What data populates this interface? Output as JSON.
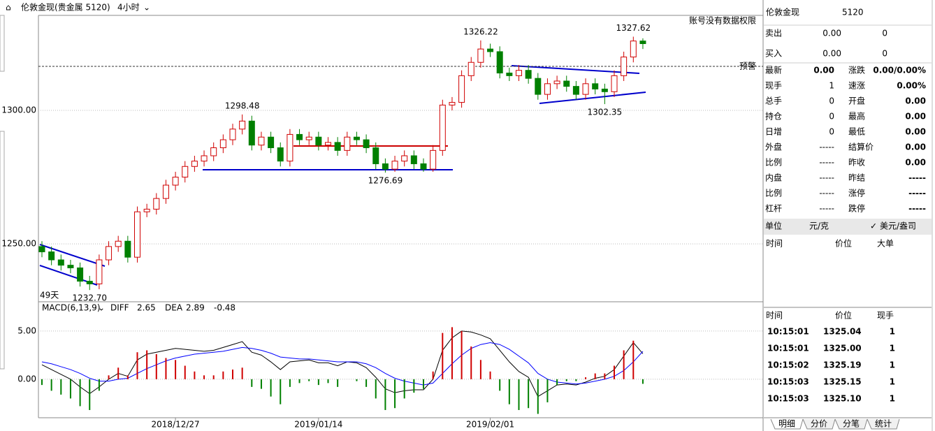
{
  "header": {
    "title": "伦敦金现(贵金属 5120)",
    "period": "4小时",
    "notice": "账号没有数据权限"
  },
  "chart_data": [
    {
      "type": "candlestick",
      "days_label": "49天",
      "up_color": "#d00000",
      "down_color": "#008000",
      "ylim": [
        1228.3,
        1335.6
      ],
      "yticks": [
        {
          "value": 1250,
          "label": "1250.00"
        },
        {
          "value": 1300,
          "label": "1300.00"
        }
      ],
      "grid": true,
      "alert": {
        "label": "预警",
        "value": 1316.5
      },
      "open": [
        1249,
        1247,
        1244,
        1242,
        1241,
        1236,
        1235,
        1244,
        1249,
        1251,
        1245,
        1262,
        1263,
        1267,
        1272,
        1275,
        1279,
        1281,
        1283,
        1286,
        1289,
        1293,
        1296,
        1287,
        1290,
        1286,
        1281,
        1291,
        1289,
        1290,
        1287,
        1288,
        1285,
        1290,
        1289,
        1286,
        1280,
        1278,
        1281,
        1283,
        1280,
        1278,
        1285,
        1302,
        1303,
        1313,
        1318,
        1323,
        1322,
        1314,
        1313,
        1315,
        1312,
        1306,
        1310,
        1311,
        1309,
        1306,
        1310,
        1308,
        1307,
        1313,
        1320,
        1326
      ],
      "high": [
        1251,
        1249,
        1246,
        1244,
        1243,
        1238,
        1246,
        1251,
        1253,
        1253,
        1264,
        1265,
        1269,
        1274,
        1277,
        1281,
        1283,
        1285,
        1288,
        1291,
        1295,
        1298.48,
        1298,
        1292,
        1292,
        1288,
        1293,
        1293,
        1292,
        1292,
        1290,
        1290,
        1292,
        1292,
        1291,
        1288,
        1282,
        1283,
        1285,
        1285,
        1282,
        1287,
        1304,
        1305,
        1315,
        1320,
        1326.22,
        1325,
        1324,
        1316,
        1317,
        1317,
        1314,
        1312,
        1313,
        1313,
        1311,
        1312,
        1312,
        1310,
        1315,
        1322,
        1327.62,
        1327
      ],
      "low": [
        1245,
        1242,
        1240,
        1239,
        1234,
        1232.7,
        1233,
        1242,
        1247,
        1243,
        1243,
        1260,
        1261,
        1265,
        1270,
        1273,
        1277,
        1279,
        1281,
        1284,
        1287,
        1291,
        1285,
        1285,
        1284,
        1279,
        1279,
        1287,
        1287,
        1285,
        1285,
        1283,
        1283,
        1287,
        1284,
        1278,
        1276.69,
        1277,
        1279,
        1278,
        1277,
        1277,
        1283,
        1300,
        1301,
        1311,
        1316,
        1320,
        1312,
        1311,
        1311,
        1310,
        1304,
        1304,
        1308,
        1307,
        1304,
        1304,
        1306,
        1302.35,
        1305,
        1311,
        1318,
        1323
      ],
      "close": [
        1247,
        1244,
        1242,
        1241,
        1236,
        1235,
        1244,
        1249,
        1251,
        1245,
        1262,
        1263,
        1267,
        1272,
        1275,
        1279,
        1281,
        1283,
        1286,
        1289,
        1293,
        1296,
        1287,
        1290,
        1286,
        1281,
        1291,
        1289,
        1290,
        1287,
        1288,
        1285,
        1290,
        1289,
        1286,
        1280,
        1278,
        1281,
        1283,
        1280,
        1278,
        1285,
        1302,
        1303,
        1313,
        1318,
        1323,
        1322,
        1314,
        1313,
        1315,
        1312,
        1306,
        1310,
        1311,
        1309,
        1306,
        1310,
        1308,
        1307,
        1313,
        1320,
        1326,
        1325
      ],
      "high_labels": [
        null,
        null,
        null,
        null,
        null,
        null,
        null,
        null,
        null,
        null,
        null,
        null,
        null,
        null,
        null,
        null,
        null,
        null,
        null,
        null,
        null,
        "1298.48",
        null,
        null,
        null,
        null,
        null,
        null,
        null,
        null,
        null,
        null,
        null,
        null,
        null,
        null,
        null,
        null,
        null,
        null,
        null,
        null,
        null,
        null,
        null,
        null,
        "1326.22",
        null,
        null,
        null,
        null,
        null,
        null,
        null,
        null,
        null,
        null,
        null,
        null,
        null,
        null,
        null,
        "1327.62",
        null
      ],
      "low_labels": [
        null,
        null,
        null,
        null,
        null,
        "1232.70",
        null,
        null,
        null,
        null,
        null,
        null,
        null,
        null,
        null,
        null,
        null,
        null,
        null,
        null,
        null,
        null,
        null,
        null,
        null,
        null,
        null,
        null,
        null,
        null,
        null,
        null,
        null,
        null,
        null,
        null,
        "1276.69",
        null,
        null,
        null,
        null,
        null,
        null,
        null,
        null,
        null,
        null,
        null,
        null,
        null,
        null,
        null,
        null,
        null,
        null,
        null,
        null,
        null,
        null,
        "1302.35",
        null,
        null,
        null,
        null
      ]
    },
    {
      "type": "macd",
      "title": "MACD(6,13,9)",
      "up_color": "#d00000",
      "down_color": "#008000",
      "ylim": [
        -4,
        8.04
      ],
      "yticks": [
        {
          "value": 0,
          "label": "0.00"
        },
        {
          "value": 5,
          "label": "5.00"
        }
      ],
      "categories": [
        null,
        null,
        null,
        null,
        null,
        null,
        null,
        null,
        null,
        null,
        null,
        null,
        null,
        null,
        "2018/12/27",
        null,
        null,
        null,
        null,
        null,
        null,
        null,
        null,
        null,
        null,
        null,
        null,
        null,
        null,
        "2019/01/14",
        null,
        null,
        null,
        null,
        null,
        null,
        null,
        null,
        null,
        null,
        null,
        null,
        null,
        null,
        null,
        null,
        null,
        "2019/02/01",
        null,
        null,
        null,
        null,
        null,
        null,
        null,
        null,
        null,
        null,
        null,
        null,
        null,
        null,
        null,
        null
      ],
      "series": [
        {
          "name": "DIFF",
          "color": "#000000",
          "values": [
            1.5,
            1.0,
            0.5,
            0,
            -0.8,
            -1.5,
            -0.8,
            0,
            0.6,
            0.3,
            2.0,
            2.6,
            2.8,
            3.0,
            3.2,
            3.1,
            3.0,
            2.9,
            3.0,
            3.3,
            3.6,
            3.9,
            2.8,
            2.5,
            1.8,
            1.0,
            1.8,
            1.9,
            2.0,
            1.7,
            1.7,
            1.4,
            1.8,
            1.7,
            1.2,
            0.2,
            -1.0,
            -1.4,
            -1.2,
            -1.1,
            -1.1,
            0.0,
            3.0,
            4.3,
            5.0,
            4.9,
            4.6,
            4.2,
            3.0,
            1.8,
            0.8,
            0.2,
            -1.8,
            -1.2,
            -0.6,
            -0.5,
            -0.6,
            -0.3,
            0.1,
            0.3,
            1.0,
            2.4,
            3.8,
            2.65
          ]
        },
        {
          "name": "DEA",
          "color": "#0000ff",
          "values": [
            1.8,
            1.6,
            1.3,
            1.0,
            0.6,
            0.1,
            -0.2,
            -0.2,
            0.0,
            0.1,
            0.6,
            1.1,
            1.5,
            1.9,
            2.2,
            2.4,
            2.6,
            2.7,
            2.8,
            2.9,
            3.1,
            3.3,
            3.2,
            3.0,
            2.7,
            2.3,
            2.2,
            2.1,
            2.1,
            2.0,
            1.9,
            1.8,
            1.8,
            1.8,
            1.6,
            1.2,
            0.6,
            0.1,
            -0.2,
            -0.4,
            -0.6,
            -0.4,
            0.6,
            1.6,
            2.5,
            3.2,
            3.6,
            3.8,
            3.6,
            3.1,
            2.4,
            1.7,
            0.6,
            0.0,
            -0.3,
            -0.4,
            -0.5,
            -0.4,
            -0.2,
            0.0,
            0.3,
            0.9,
            1.8,
            2.89
          ]
        },
        {
          "values": [
            -0.6,
            -1.2,
            -1.6,
            -2.0,
            -2.8,
            -3.2,
            -1.2,
            0.4,
            1.2,
            0.4,
            2.8,
            3.0,
            2.6,
            2.2,
            2.0,
            1.4,
            0.8,
            0.4,
            0.4,
            0.8,
            1.0,
            1.2,
            -0.8,
            -1.0,
            -1.8,
            -2.6,
            -0.8,
            -0.4,
            -0.2,
            -0.6,
            -0.4,
            -0.8,
            0,
            -0.2,
            -0.8,
            -2.0,
            -3.2,
            -3.0,
            -2.0,
            -1.4,
            -1.0,
            0.8,
            4.8,
            5.4,
            5.0,
            3.4,
            2.0,
            0.8,
            -1.2,
            -2.6,
            -3.2,
            -3.0,
            -3.6,
            -2.4,
            -0.6,
            -0.2,
            -0.2,
            0.2,
            0.6,
            0.6,
            1.4,
            3.0,
            4.0,
            -0.48
          ]
        }
      ]
    }
  ],
  "quote": {
    "title": "伦敦金现",
    "code": "5120",
    "sell": [
      "卖出",
      "0.00",
      "0"
    ],
    "buy": [
      "买入",
      "0.00",
      "0"
    ],
    "rows": [
      [
        "最新",
        "0.00",
        "涨跌",
        "0.00/0.00%"
      ],
      [
        "现手",
        "1",
        "速涨",
        "0.00%"
      ],
      [
        "总手",
        "0",
        "开盘",
        "0.00"
      ],
      [
        "持仓",
        "0",
        "最高",
        "0.00"
      ],
      [
        "日增",
        "0",
        "最低",
        "0.00"
      ],
      [
        "外盘",
        "-----",
        "结算价",
        "0.00"
      ],
      [
        "比例",
        "-----",
        "昨收",
        "0.00"
      ],
      [
        "内盘",
        "-----",
        "昨结",
        "-----"
      ],
      [
        "比例",
        "-----",
        "涨停",
        "-----"
      ],
      [
        "杠杆",
        "-----",
        "跌停",
        "-----"
      ]
    ],
    "unit": [
      "单位",
      "元/克",
      "美元/盎司"
    ],
    "detail_headers": [
      "时间",
      "价位",
      "大单"
    ]
  },
  "trades": {
    "headers": [
      "时间",
      "价位",
      "现手"
    ],
    "rows": [
      [
        "10:15:01",
        "1325.04",
        "1"
      ],
      [
        "10:15:01",
        "1325.00",
        "1"
      ],
      [
        "10:15:02",
        "1325.19",
        "1"
      ],
      [
        "10:15:03",
        "1325.15",
        "1"
      ],
      [
        "10:15:03",
        "1325.10",
        "1"
      ]
    ]
  },
  "tabs": [
    "明细",
    "分价",
    "分笔",
    "统计"
  ]
}
